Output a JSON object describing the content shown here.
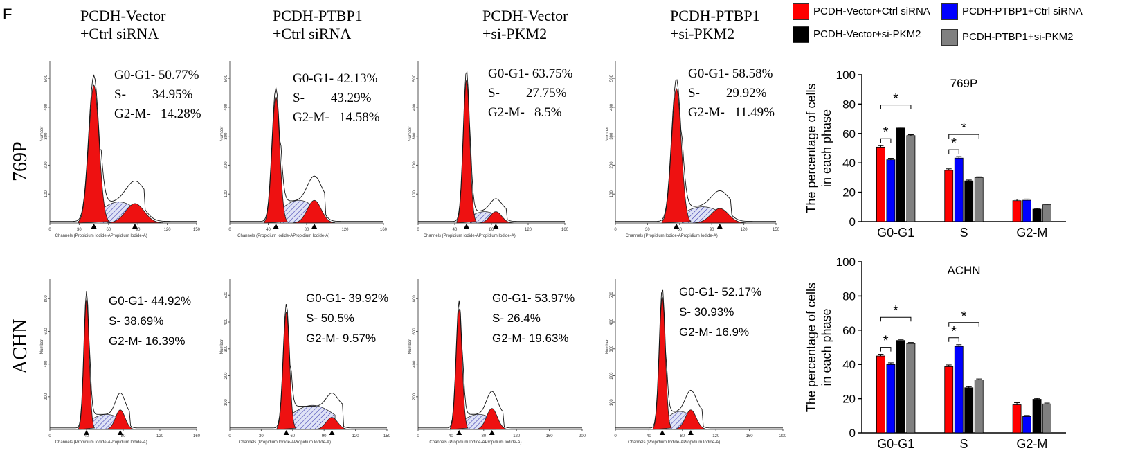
{
  "panel_letter": "F",
  "columns": [
    {
      "title": [
        "PCDH-Vector",
        "+Ctrl siRNA"
      ]
    },
    {
      "title": [
        "PCDH-PTBP1",
        "+Ctrl siRNA"
      ]
    },
    {
      "title": [
        "PCDH-Vector",
        "+si-PKM2"
      ]
    },
    {
      "title": [
        "PCDH-PTBP1",
        "+si-PKM2"
      ]
    }
  ],
  "rows": [
    {
      "label": "769P",
      "ylabel": "Number",
      "xlabel": "Channels (Propidium Iodide-APropidium Iodide-A)",
      "panels": [
        {
          "stats": [
            "G0-G1- 50.77%",
            "S-        34.95%",
            "G2-M-   14.28%"
          ],
          "xticks": [
            "0",
            "30",
            "60",
            "90",
            "120",
            "150"
          ],
          "yticks": [
            "100",
            "200",
            "300",
            "400",
            "500"
          ]
        },
        {
          "stats": [
            "G0-G1- 42.13%",
            "S-        43.29%",
            "G2-M-   14.58%"
          ],
          "xticks": [
            "0",
            "40",
            "80",
            "120",
            "160"
          ],
          "yticks": [
            "100",
            "200",
            "300",
            "400",
            "500"
          ]
        },
        {
          "stats": [
            "G0-G1- 63.75%",
            "S-        27.75%",
            "G2-M-   8.5%"
          ],
          "xticks": [
            "0",
            "40",
            "80",
            "120",
            "160"
          ],
          "yticks": [
            "100",
            "200",
            "300",
            "400",
            "500"
          ]
        },
        {
          "stats": [
            "G0-G1- 58.58%",
            "S-        29.92%",
            "G2-M-   11.49%"
          ],
          "xticks": [
            "0",
            "30",
            "60",
            "90",
            "120",
            "150"
          ],
          "yticks": [
            "100",
            "200",
            "300",
            "400",
            "500"
          ]
        }
      ]
    },
    {
      "label": "ACHN",
      "ylabel": "Number",
      "xlabel": "Channels (Propidium Iodide-APropidium Iodide-A)",
      "panels": [
        {
          "stats": [
            "G0-G1- 44.92%",
            "S- 38.69%",
            "G2-M- 16.39%"
          ],
          "xticks": [
            "0",
            "40",
            "80",
            "120",
            "160"
          ],
          "yticks": [
            "200",
            "400",
            "600",
            "800"
          ]
        },
        {
          "stats": [
            "G0-G1- 39.92%",
            "S- 50.5%",
            "G2-M- 9.57%"
          ],
          "xticks": [
            "0",
            "30",
            "60",
            "90",
            "120",
            "150"
          ],
          "yticks": [
            "100",
            "200",
            "300",
            "400",
            "500"
          ]
        },
        {
          "stats": [
            "G0-G1- 53.97%",
            "S- 26.4%",
            "G2-M- 19.63%"
          ],
          "xticks": [
            "0",
            "40",
            "80",
            "120",
            "160",
            "200"
          ],
          "yticks": [
            "200",
            "400",
            "600",
            "800"
          ]
        },
        {
          "stats": [
            "G0-G1- 52.17%",
            "S- 30.93%",
            "G2-M- 16.9%"
          ],
          "xticks": [
            "0",
            "40",
            "80",
            "120",
            "160",
            "200"
          ],
          "yticks": [
            "100",
            "200",
            "300",
            "400",
            "500"
          ]
        }
      ]
    }
  ],
  "legend": [
    {
      "label": "PCDH-Vector+Ctrl siRNA",
      "color": "#ff0000"
    },
    {
      "label": "PCDH-PTBP1+Ctrl siRNA",
      "color": "#0000ff"
    },
    {
      "label": "PCDH-Vector+si-PKM2",
      "color": "#000000"
    },
    {
      "label": "PCDH-PTBP1+si-PKM2",
      "color": "#808080"
    }
  ],
  "chart_data": [
    {
      "type": "bar",
      "title": "769P",
      "ylabel": "The percentage of cells in each phase",
      "ylabel_lines": [
        "The percentage of cells",
        "in each phase"
      ],
      "categories": [
        "G0-G1",
        "S",
        "G2-M"
      ],
      "ylim": [
        0,
        100
      ],
      "yticks": [
        "0",
        "20",
        "40",
        "60",
        "80",
        "100"
      ],
      "series": [
        {
          "name": "PCDH-Vector+Ctrl siRNA",
          "values": [
            50.77,
            34.95,
            14.28
          ],
          "errors": [
            1.0,
            1.0,
            1.0
          ]
        },
        {
          "name": "PCDH-PTBP1+Ctrl siRNA",
          "values": [
            42.13,
            43.29,
            14.58
          ],
          "errors": [
            1.0,
            1.0,
            0.8
          ]
        },
        {
          "name": "PCDH-Vector+si-PKM2",
          "values": [
            63.75,
            27.75,
            8.5
          ],
          "errors": [
            0.6,
            0.6,
            0.5
          ]
        },
        {
          "name": "PCDH-PTBP1+si-PKM2",
          "values": [
            58.58,
            29.92,
            11.49
          ],
          "errors": [
            0.6,
            0.6,
            0.5
          ]
        }
      ],
      "significance_marks": [
        "*",
        "*",
        "*",
        "*"
      ]
    },
    {
      "type": "bar",
      "title": "ACHN",
      "ylabel": "The percentage of cells in each phase",
      "ylabel_lines": [
        "The percentage of cells",
        "in each phase"
      ],
      "categories": [
        "G0-G1",
        "S",
        "G2-M"
      ],
      "ylim": [
        0,
        100
      ],
      "yticks": [
        "0",
        "20",
        "40",
        "60",
        "80",
        "100"
      ],
      "series": [
        {
          "name": "PCDH-Vector+Ctrl siRNA",
          "values": [
            44.92,
            38.69,
            16.39
          ],
          "errors": [
            1.0,
            1.0,
            1.2
          ]
        },
        {
          "name": "PCDH-PTBP1+Ctrl siRNA",
          "values": [
            39.92,
            50.5,
            9.57
          ],
          "errors": [
            1.0,
            1.0,
            0.6
          ]
        },
        {
          "name": "PCDH-Vector+si-PKM2",
          "values": [
            53.97,
            26.4,
            19.63
          ],
          "errors": [
            0.6,
            0.6,
            0.5
          ]
        },
        {
          "name": "PCDH-PTBP1+si-PKM2",
          "values": [
            52.17,
            30.93,
            16.9
          ],
          "errors": [
            0.6,
            0.6,
            0.5
          ]
        }
      ],
      "significance_marks": [
        "*",
        "*",
        "*",
        "*"
      ]
    }
  ]
}
